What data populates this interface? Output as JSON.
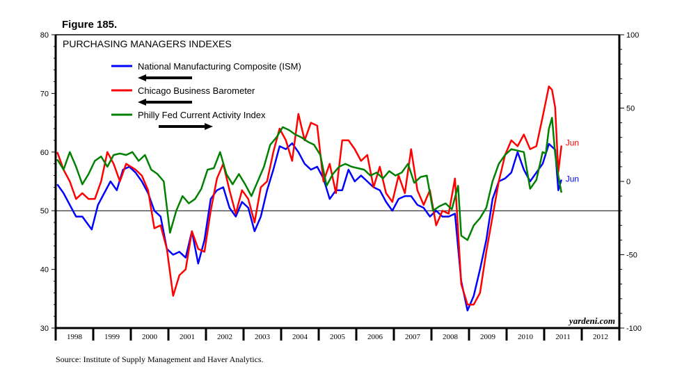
{
  "figure_label": "Figure 185.",
  "source": "Source: Institute of Supply Management and Haver Analytics.",
  "watermark": "yardeni.com",
  "chart_data": {
    "type": "line",
    "title": "PURCHASING MANAGERS INDEXES",
    "left_axis": {
      "ylim": [
        30,
        80
      ],
      "ticks": [
        30,
        40,
        50,
        60,
        70,
        80
      ]
    },
    "right_axis": {
      "ylim": [
        -100,
        100
      ],
      "ticks": [
        -100,
        -50,
        0,
        50,
        100
      ]
    },
    "x_ticks": [
      "1998",
      "1999",
      "2000",
      "2001",
      "2002",
      "2003",
      "2004",
      "2005",
      "2006",
      "2007",
      "2008",
      "2009",
      "2010",
      "2011",
      "2012"
    ],
    "xlim": [
      "1998-01",
      "2012-12"
    ],
    "reference_line": 50,
    "grid": false,
    "legend_placement": "top-left",
    "series": [
      {
        "name": "National Manufacturing Composite (ISM)",
        "axis": "left",
        "arrow": "left",
        "color": "#0000ff",
        "end_label": "Jun",
        "x": [
          "1998-01",
          "1998-03",
          "1998-05",
          "1998-07",
          "1998-09",
          "1998-12",
          "1999-02",
          "1999-04",
          "1999-06",
          "1999-08",
          "1999-10",
          "1999-12",
          "2000-02",
          "2000-04",
          "2000-06",
          "2000-08",
          "2000-10",
          "2000-12",
          "2001-02",
          "2001-04",
          "2001-06",
          "2001-08",
          "2001-10",
          "2001-12",
          "2002-02",
          "2002-04",
          "2002-06",
          "2002-08",
          "2002-10",
          "2002-12",
          "2003-02",
          "2003-04",
          "2003-06",
          "2003-08",
          "2003-10",
          "2003-12",
          "2004-02",
          "2004-04",
          "2004-06",
          "2004-08",
          "2004-10",
          "2004-12",
          "2005-02",
          "2005-04",
          "2005-06",
          "2005-08",
          "2005-10",
          "2005-12",
          "2006-02",
          "2006-04",
          "2006-06",
          "2006-08",
          "2006-10",
          "2006-12",
          "2007-02",
          "2007-04",
          "2007-06",
          "2007-08",
          "2007-10",
          "2007-12",
          "2008-02",
          "2008-04",
          "2008-06",
          "2008-08",
          "2008-10",
          "2008-12",
          "2009-02",
          "2009-04",
          "2009-06",
          "2009-08",
          "2009-10",
          "2009-12",
          "2010-02",
          "2010-04",
          "2010-06",
          "2010-08",
          "2010-10",
          "2010-12",
          "2011-02",
          "2011-04",
          "2011-05",
          "2011-06"
        ],
        "values": [
          54.5,
          53,
          51,
          49,
          49,
          46.8,
          51,
          53,
          55,
          53.5,
          57,
          57.5,
          56.5,
          55,
          53,
          50,
          49,
          43.5,
          42.5,
          43,
          42,
          46.5,
          41,
          45,
          52,
          53.5,
          54,
          50.5,
          49,
          51.5,
          50.5,
          46.5,
          49,
          53.5,
          57,
          61,
          60.5,
          61.5,
          60,
          58,
          57,
          57.5,
          55.5,
          52,
          53.5,
          53.5,
          57,
          55,
          56,
          55,
          54,
          53.5,
          51.5,
          50,
          52,
          52.5,
          52.5,
          51,
          50.5,
          49,
          50,
          49,
          49,
          49.5,
          38,
          33,
          35.5,
          40,
          45,
          52,
          55,
          55.5,
          56.5,
          60,
          57,
          55,
          56.5,
          58,
          61.4,
          60.4,
          53.5,
          55.3
        ]
      },
      {
        "name": "Chicago Business Barometer",
        "axis": "left",
        "arrow": "left",
        "color": "#ff0000",
        "end_label": "Jun",
        "x": [
          "1998-01",
          "1998-03",
          "1998-05",
          "1998-07",
          "1998-09",
          "1998-11",
          "1999-01",
          "1999-03",
          "1999-05",
          "1999-07",
          "1999-09",
          "1999-11",
          "2000-02",
          "2000-04",
          "2000-06",
          "2000-08",
          "2000-10",
          "2000-12",
          "2001-02",
          "2001-04",
          "2001-06",
          "2001-08",
          "2001-10",
          "2001-12",
          "2002-02",
          "2002-04",
          "2002-06",
          "2002-08",
          "2002-10",
          "2002-12",
          "2003-02",
          "2003-04",
          "2003-06",
          "2003-08",
          "2003-10",
          "2003-12",
          "2004-02",
          "2004-04",
          "2004-06",
          "2004-08",
          "2004-10",
          "2004-12",
          "2005-02",
          "2005-04",
          "2005-06",
          "2005-08",
          "2005-10",
          "2005-12",
          "2006-02",
          "2006-04",
          "2006-06",
          "2006-08",
          "2006-10",
          "2006-12",
          "2007-02",
          "2007-04",
          "2007-06",
          "2007-08",
          "2007-10",
          "2007-12",
          "2008-02",
          "2008-04",
          "2008-06",
          "2008-08",
          "2008-10",
          "2008-12",
          "2009-02",
          "2009-04",
          "2009-06",
          "2009-08",
          "2009-10",
          "2009-12",
          "2010-02",
          "2010-04",
          "2010-06",
          "2010-08",
          "2010-10",
          "2010-12",
          "2011-02",
          "2011-03",
          "2011-04",
          "2011-05",
          "2011-06"
        ],
        "values": [
          60,
          57,
          55,
          52,
          53,
          52,
          52,
          55,
          60,
          58,
          55,
          58,
          57,
          56,
          53.5,
          47,
          47.5,
          43.5,
          35.5,
          39,
          40,
          46.5,
          43.5,
          43,
          50,
          55.5,
          58,
          53.5,
          49.5,
          53.5,
          52,
          48,
          54,
          55,
          60,
          64,
          62,
          58.5,
          66.5,
          62,
          65,
          64.5,
          55,
          58,
          53,
          62,
          62,
          60.5,
          58.5,
          59.5,
          54,
          57.5,
          53,
          51.5,
          56,
          53,
          60.5,
          53.5,
          51,
          53.5,
          47.5,
          50,
          49.5,
          55.5,
          37.5,
          34,
          34,
          36,
          43,
          49,
          55,
          59.5,
          62,
          61,
          63,
          60.5,
          61,
          66,
          71.2,
          70.6,
          67.6,
          56.6,
          61.1
        ]
      },
      {
        "name": "Philly Fed Current Activity Index",
        "axis": "right",
        "arrow": "right",
        "color": "#008000",
        "x": [
          "1998-01",
          "1998-03",
          "1998-05",
          "1998-07",
          "1998-09",
          "1998-11",
          "1999-01",
          "1999-03",
          "1999-05",
          "1999-07",
          "1999-09",
          "1999-11",
          "2000-01",
          "2000-03",
          "2000-05",
          "2000-07",
          "2000-09",
          "2000-11",
          "2001-01",
          "2001-03",
          "2001-05",
          "2001-07",
          "2001-09",
          "2001-11",
          "2002-01",
          "2002-03",
          "2002-05",
          "2002-07",
          "2002-09",
          "2002-11",
          "2003-01",
          "2003-03",
          "2003-05",
          "2003-07",
          "2003-09",
          "2003-11",
          "2004-01",
          "2004-03",
          "2004-05",
          "2004-07",
          "2004-09",
          "2004-11",
          "2005-01",
          "2005-03",
          "2005-05",
          "2005-07",
          "2005-09",
          "2005-11",
          "2006-01",
          "2006-03",
          "2006-05",
          "2006-07",
          "2006-09",
          "2006-11",
          "2007-01",
          "2007-03",
          "2007-05",
          "2007-07",
          "2007-09",
          "2007-11",
          "2008-01",
          "2008-03",
          "2008-05",
          "2008-07",
          "2008-09",
          "2008-10",
          "2008-12",
          "2009-02",
          "2009-04",
          "2009-06",
          "2009-08",
          "2009-10",
          "2009-12",
          "2010-02",
          "2010-04",
          "2010-06",
          "2010-08",
          "2010-10",
          "2010-12",
          "2011-01",
          "2011-02",
          "2011-03",
          "2011-04",
          "2011-05",
          "2011-06"
        ],
        "values": [
          15,
          8,
          20,
          10,
          -2,
          5,
          14,
          17,
          10,
          18,
          19,
          18,
          20,
          14,
          18,
          8,
          5,
          0,
          -35,
          -20,
          -10,
          -15,
          -12,
          -5,
          8,
          9,
          20,
          5,
          -2,
          5,
          -2,
          -10,
          0,
          10,
          25,
          30,
          37,
          35,
          32,
          30,
          27,
          25,
          18,
          -3,
          5,
          10,
          12,
          10,
          9,
          8,
          4,
          6,
          2,
          7,
          4,
          6,
          12,
          -1,
          3,
          4,
          -20,
          -17,
          -15,
          -19,
          -3,
          -37,
          -40,
          -30,
          -25,
          -18,
          0,
          12,
          18,
          22,
          21,
          20,
          -5,
          1,
          20,
          19,
          35.9,
          43.4,
          18.5,
          3.9,
          -7.7
        ]
      }
    ]
  }
}
